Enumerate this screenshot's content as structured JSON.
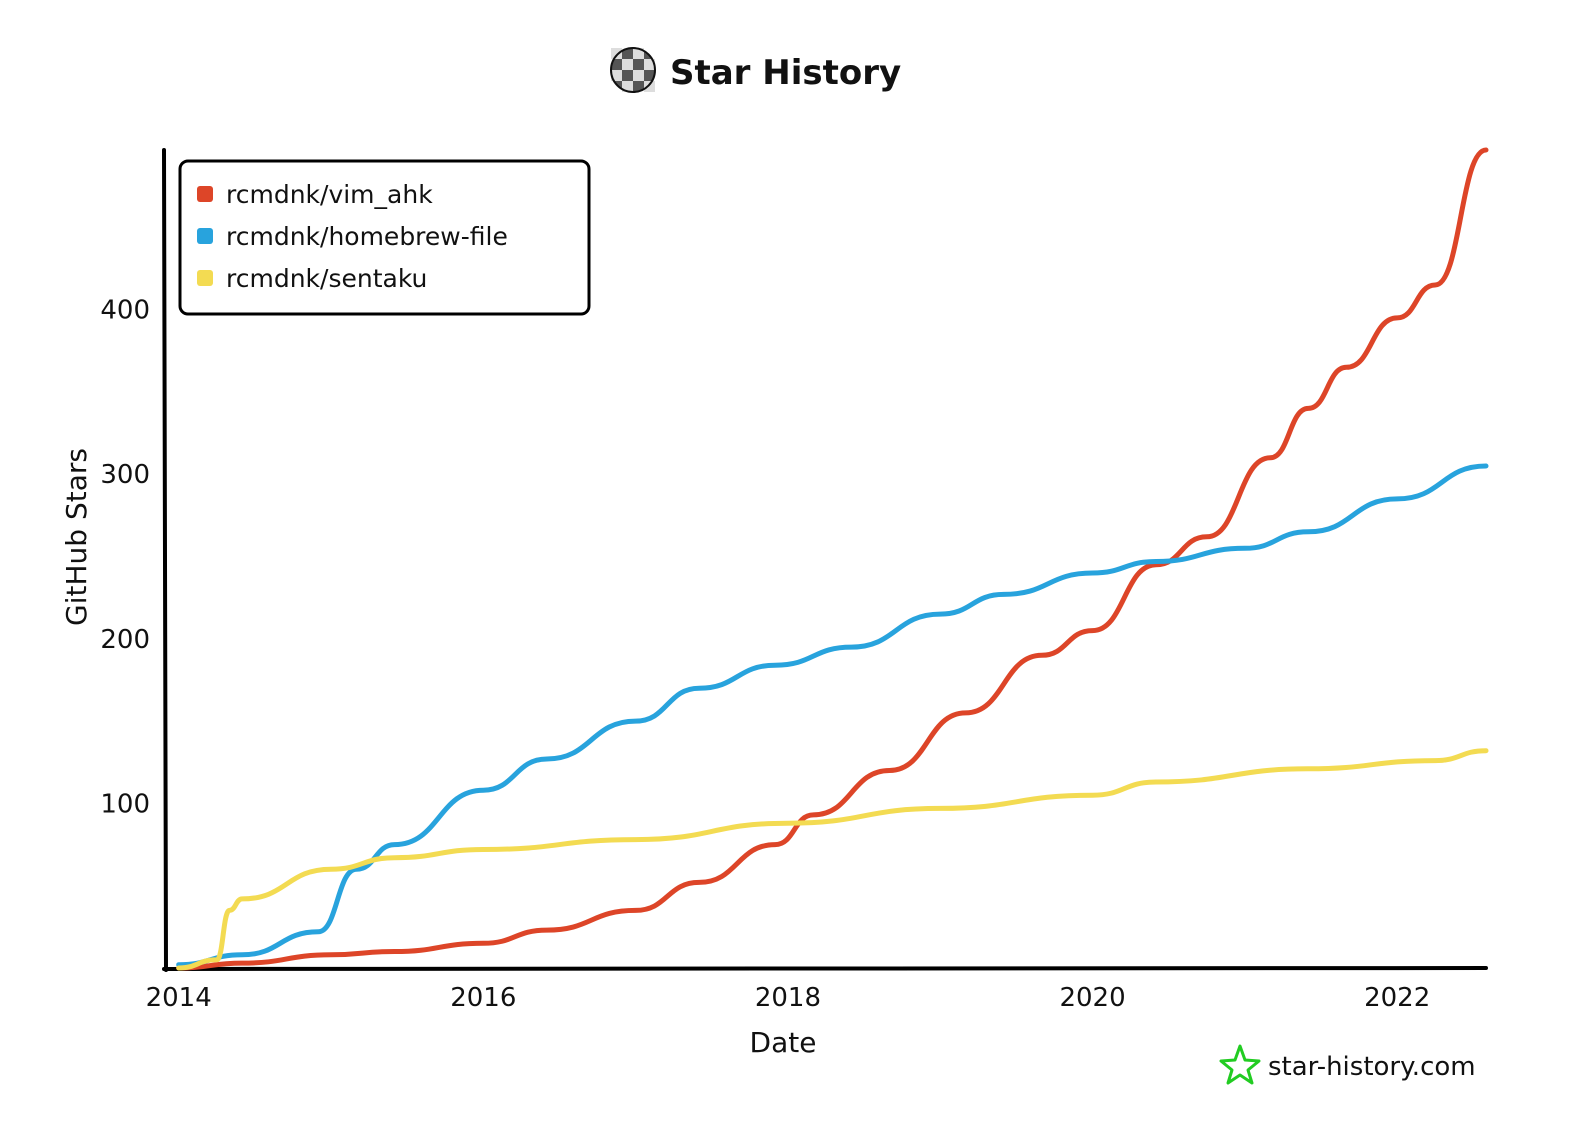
{
  "header": {
    "title": "Star History",
    "logo_icon": "star-history-logo-icon"
  },
  "watermark": {
    "text": "star-history.com",
    "icon": "star-outline-icon",
    "color": "#22cc22"
  },
  "chart_data": {
    "type": "line",
    "title": "Star History",
    "xlabel": "Date",
    "ylabel": "GitHub Stars",
    "x_ticks": [
      "2014",
      "2016",
      "2018",
      "2020",
      "2022"
    ],
    "y_ticks": [
      100,
      200,
      300,
      400
    ],
    "xlim": [
      "2013-12",
      "2022-08"
    ],
    "ylim": [
      0,
      497
    ],
    "legend_position": "top-left",
    "series": [
      {
        "name": "rcmdnk/vim_ahk",
        "color": "#dd4528",
        "points": [
          [
            "2014-01",
            0
          ],
          [
            "2014-06",
            3
          ],
          [
            "2015-01",
            8
          ],
          [
            "2015-06",
            10
          ],
          [
            "2016-01",
            15
          ],
          [
            "2016-06",
            23
          ],
          [
            "2017-01",
            35
          ],
          [
            "2017-06",
            52
          ],
          [
            "2017-12",
            75
          ],
          [
            "2018-03",
            93
          ],
          [
            "2018-09",
            120
          ],
          [
            "2019-03",
            155
          ],
          [
            "2019-09",
            190
          ],
          [
            "2020-01",
            205
          ],
          [
            "2020-06",
            245
          ],
          [
            "2020-10",
            262
          ],
          [
            "2021-03",
            310
          ],
          [
            "2021-06",
            340
          ],
          [
            "2021-09",
            365
          ],
          [
            "2022-01",
            395
          ],
          [
            "2022-04",
            415
          ],
          [
            "2022-08",
            497
          ]
        ]
      },
      {
        "name": "rcmdnk/homebrew-file",
        "color": "#28a3dd",
        "points": [
          [
            "2014-01",
            2
          ],
          [
            "2014-06",
            8
          ],
          [
            "2014-12",
            22
          ],
          [
            "2015-03",
            60
          ],
          [
            "2015-06",
            75
          ],
          [
            "2016-01",
            108
          ],
          [
            "2016-06",
            127
          ],
          [
            "2017-01",
            150
          ],
          [
            "2017-06",
            170
          ],
          [
            "2017-12",
            184
          ],
          [
            "2018-06",
            195
          ],
          [
            "2019-01",
            215
          ],
          [
            "2019-06",
            227
          ],
          [
            "2020-01",
            240
          ],
          [
            "2020-06",
            247
          ],
          [
            "2021-01",
            255
          ],
          [
            "2021-06",
            265
          ],
          [
            "2022-01",
            285
          ],
          [
            "2022-08",
            305
          ]
        ]
      },
      {
        "name": "rcmdnk/sentaku",
        "color": "#f3db52",
        "points": [
          [
            "2014-01",
            0
          ],
          [
            "2014-04",
            5
          ],
          [
            "2014-05",
            35
          ],
          [
            "2014-06",
            42
          ],
          [
            "2015-01",
            60
          ],
          [
            "2015-06",
            67
          ],
          [
            "2016-01",
            72
          ],
          [
            "2017-01",
            78
          ],
          [
            "2018-01",
            88
          ],
          [
            "2019-01",
            97
          ],
          [
            "2020-01",
            105
          ],
          [
            "2020-06",
            113
          ],
          [
            "2021-06",
            121
          ],
          [
            "2022-04",
            126
          ],
          [
            "2022-08",
            132
          ]
        ]
      }
    ]
  }
}
